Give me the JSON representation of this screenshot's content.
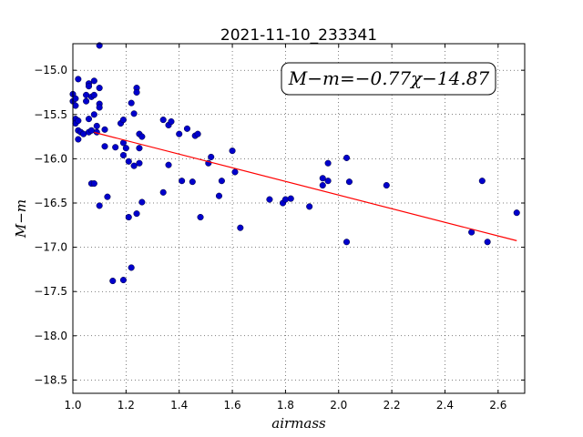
{
  "chart_data": {
    "type": "scatter",
    "title": "2021-11-10_233341",
    "xlabel": "airmass",
    "ylabel": "M−m",
    "xlim": [
      1.0,
      2.7
    ],
    "ylim": [
      -18.65,
      -14.7
    ],
    "xticks": [
      1.0,
      1.2,
      1.4,
      1.6,
      1.8,
      2.0,
      2.2,
      2.4,
      2.6
    ],
    "yticks": [
      -15.0,
      -15.5,
      -16.0,
      -16.5,
      -17.0,
      -17.5,
      -18.0,
      -18.5
    ],
    "grid": true,
    "annotation": "M−m=−0.77χ−14.87",
    "colors": {
      "points": "#0000cc",
      "fit": "#ff0000"
    },
    "fit": {
      "slope": -0.77,
      "intercept": -14.87,
      "x_range": [
        1.08,
        2.67
      ]
    },
    "points": [
      [
        1.0,
        -15.27
      ],
      [
        1.0,
        -15.35
      ],
      [
        1.01,
        -15.4
      ],
      [
        1.01,
        -15.32
      ],
      [
        1.01,
        -15.55
      ],
      [
        1.01,
        -15.6
      ],
      [
        1.02,
        -15.1
      ],
      [
        1.02,
        -15.57
      ],
      [
        1.02,
        -15.78
      ],
      [
        1.02,
        -15.68
      ],
      [
        1.03,
        -15.7
      ],
      [
        1.04,
        -15.72
      ],
      [
        1.05,
        -15.28
      ],
      [
        1.05,
        -15.35
      ],
      [
        1.06,
        -15.15
      ],
      [
        1.06,
        -15.18
      ],
      [
        1.06,
        -15.55
      ],
      [
        1.06,
        -15.7
      ],
      [
        1.07,
        -15.68
      ],
      [
        1.07,
        -15.3
      ],
      [
        1.08,
        -15.28
      ],
      [
        1.08,
        -15.12
      ],
      [
        1.08,
        -15.5
      ],
      [
        1.07,
        -16.28
      ],
      [
        1.08,
        -16.28
      ],
      [
        1.09,
        -15.63
      ],
      [
        1.09,
        -15.7
      ],
      [
        1.1,
        -14.72
      ],
      [
        1.1,
        -15.2
      ],
      [
        1.1,
        -15.38
      ],
      [
        1.1,
        -15.42
      ],
      [
        1.1,
        -16.53
      ],
      [
        1.12,
        -15.67
      ],
      [
        1.12,
        -15.86
      ],
      [
        1.13,
        -16.43
      ],
      [
        1.15,
        -17.38
      ],
      [
        1.16,
        -15.87
      ],
      [
        1.18,
        -15.6
      ],
      [
        1.19,
        -15.56
      ],
      [
        1.19,
        -15.82
      ],
      [
        1.19,
        -15.96
      ],
      [
        1.19,
        -17.37
      ],
      [
        1.2,
        -15.88
      ],
      [
        1.21,
        -16.03
      ],
      [
        1.21,
        -16.66
      ],
      [
        1.22,
        -15.37
      ],
      [
        1.22,
        -17.23
      ],
      [
        1.23,
        -16.08
      ],
      [
        1.23,
        -15.49
      ],
      [
        1.24,
        -15.2
      ],
      [
        1.24,
        -15.25
      ],
      [
        1.24,
        -16.62
      ],
      [
        1.25,
        -16.05
      ],
      [
        1.25,
        -15.88
      ],
      [
        1.25,
        -15.72
      ],
      [
        1.26,
        -15.75
      ],
      [
        1.26,
        -16.49
      ],
      [
        1.34,
        -15.56
      ],
      [
        1.34,
        -16.38
      ],
      [
        1.36,
        -15.62
      ],
      [
        1.36,
        -16.07
      ],
      [
        1.37,
        -15.58
      ],
      [
        1.4,
        -15.72
      ],
      [
        1.41,
        -16.25
      ],
      [
        1.43,
        -15.66
      ],
      [
        1.45,
        -16.26
      ],
      [
        1.46,
        -15.74
      ],
      [
        1.47,
        -15.72
      ],
      [
        1.48,
        -16.66
      ],
      [
        1.51,
        -16.05
      ],
      [
        1.52,
        -15.98
      ],
      [
        1.55,
        -16.42
      ],
      [
        1.56,
        -16.25
      ],
      [
        1.6,
        -15.91
      ],
      [
        1.61,
        -16.15
      ],
      [
        1.63,
        -16.78
      ],
      [
        1.74,
        -16.46
      ],
      [
        1.79,
        -16.5
      ],
      [
        1.8,
        -16.46
      ],
      [
        1.82,
        -16.45
      ],
      [
        1.89,
        -16.54
      ],
      [
        1.94,
        -16.22
      ],
      [
        1.94,
        -16.3
      ],
      [
        1.96,
        -16.05
      ],
      [
        1.96,
        -16.25
      ],
      [
        2.03,
        -15.99
      ],
      [
        2.03,
        -16.94
      ],
      [
        2.04,
        -16.26
      ],
      [
        2.18,
        -16.3
      ],
      [
        2.5,
        -16.83
      ],
      [
        2.54,
        -16.25
      ],
      [
        2.56,
        -16.94
      ],
      [
        2.67,
        -16.61
      ]
    ]
  }
}
